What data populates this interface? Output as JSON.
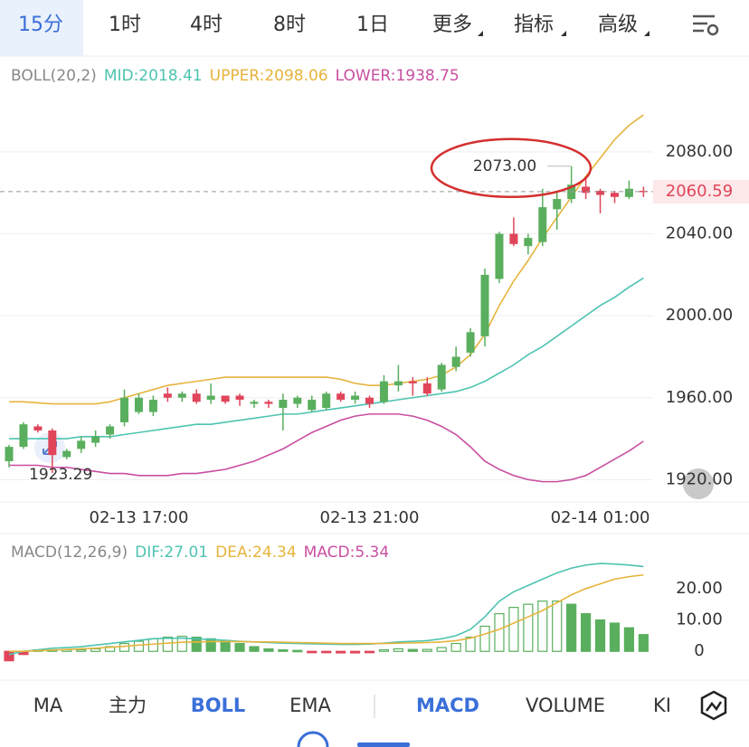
{
  "tabs": [
    "15分",
    "1时",
    "4时",
    "8时",
    "1日",
    "更多",
    "指标",
    "高级"
  ],
  "selected_tab": 0,
  "boll_header": {
    "name": "BOLL(20,2)",
    "mid": "MID:2018.41",
    "upper": "UPPER:2098.06",
    "lower": "LOWER:1938.75"
  },
  "main_chart": {
    "ylim": [
      1910,
      2110
    ],
    "yticks": [
      {
        "value": 2080,
        "label": "2080.00"
      },
      {
        "value": 2040,
        "label": "2040.00"
      },
      {
        "value": 2000,
        "label": "2000.00"
      },
      {
        "value": 1960,
        "label": "1960.00"
      },
      {
        "value": 1920,
        "label": "1920.00"
      }
    ],
    "categories": [
      null,
      null,
      null,
      null,
      null,
      null,
      null,
      null,
      null,
      "02-13 17:00",
      null,
      null,
      null,
      null,
      null,
      null,
      null,
      null,
      null,
      null,
      null,
      null,
      null,
      null,
      null,
      "02-13 21:00",
      null,
      null,
      null,
      null,
      null,
      null,
      null,
      null,
      null,
      null,
      null,
      null,
      null,
      null,
      null,
      "02-14 01:00",
      null,
      null,
      null
    ],
    "open": [
      1929,
      1936,
      1946,
      1944,
      1931,
      1935,
      1938,
      1942,
      1948,
      1953,
      1953,
      1962,
      1960,
      1962,
      1959,
      1961,
      1961,
      1957,
      1958,
      1955,
      1957,
      1954,
      1955,
      1962,
      1959,
      1960,
      1958,
      1966,
      1968,
      1967,
      1964,
      1975,
      1982,
      1990,
      2018,
      2040,
      2034,
      2036,
      2052,
      2057,
      2063,
      2061,
      2060,
      2058,
      2061
    ],
    "high": [
      1937,
      1948,
      1947,
      1945,
      1935,
      1941,
      1944,
      1947,
      1964,
      1962,
      1961,
      1965,
      1963,
      1964,
      1967,
      1961,
      1962,
      1959,
      1959,
      1962,
      1961,
      1961,
      1963,
      1963,
      1963,
      1961,
      1971,
      1976,
      1970,
      1970,
      1977,
      1985,
      1994,
      2023,
      2041,
      2048,
      2040,
      2062,
      2060,
      2073,
      2068,
      2062,
      2061,
      2066,
      2063
    ],
    "low": [
      1926,
      1935,
      1943,
      1923.29,
      1930,
      1933,
      1936,
      1940,
      1946,
      1952,
      1951,
      1958,
      1958,
      1957,
      1957,
      1957,
      1956,
      1955,
      1955,
      1944,
      1955,
      1953,
      1954,
      1958,
      1957,
      1955,
      1957,
      1963,
      1961,
      1961,
      1963,
      1973,
      1980,
      1985,
      2016,
      2034,
      2030,
      2034,
      2042,
      2055,
      2057,
      2050,
      2055,
      2057,
      2058
    ],
    "close": [
      1936,
      1947,
      1944,
      1932,
      1934,
      1939,
      1941,
      1946,
      1960,
      1960,
      1959,
      1960,
      1962,
      1958,
      1961,
      1958,
      1959,
      1958,
      1957,
      1959,
      1960,
      1959,
      1962,
      1959,
      1961,
      1957,
      1968,
      1968,
      1967,
      1962,
      1976,
      1980,
      1992,
      2020,
      2040,
      2035,
      2038,
      2053,
      2057,
      2064,
      2060,
      2059,
      2058,
      2062,
      2060.59
    ],
    "upper": [
      1958,
      1958,
      1957.5,
      1957,
      1957,
      1957,
      1957,
      1958,
      1960,
      1962,
      1964,
      1966,
      1967,
      1968,
      1969,
      1970,
      1970,
      1970,
      1970,
      1970,
      1970,
      1970,
      1970,
      1969,
      1967,
      1966,
      1966,
      1967,
      1968,
      1969,
      1971,
      1975,
      1981,
      1991,
      2005,
      2017,
      2027,
      2038,
      2048,
      2058,
      2068,
      2077,
      2086,
      2093,
      2098.06
    ],
    "mid": [
      1940,
      1940,
      1940,
      1940,
      1940,
      1941,
      1941,
      1941,
      1942,
      1943,
      1944,
      1945,
      1946,
      1947,
      1947,
      1948,
      1949,
      1950,
      1951,
      1952,
      1952,
      1953,
      1954,
      1955,
      1956,
      1957,
      1958,
      1959,
      1960,
      1961,
      1962,
      1963,
      1965,
      1968,
      1972,
      1976,
      1981,
      1985,
      1990,
      1995,
      2000,
      2005,
      2009,
      2014,
      2018.41
    ],
    "lower": [
      1927,
      1927,
      1927,
      1926,
      1926,
      1925,
      1924,
      1923,
      1923,
      1922,
      1922,
      1922,
      1923,
      1923,
      1924,
      1925,
      1927,
      1929,
      1932,
      1935,
      1939,
      1943,
      1946,
      1949,
      1951,
      1952,
      1952,
      1952,
      1951,
      1949,
      1946,
      1942,
      1936,
      1929,
      1925,
      1922,
      1920,
      1919,
      1919,
      1920,
      1922,
      1926,
      1930,
      1934,
      1938.75
    ],
    "last_price": {
      "value": 2060.59,
      "label": "2060.59"
    },
    "max_label": {
      "value": 2073,
      "label": "2073.00"
    },
    "min_label": {
      "value": 1923.29,
      "label": "1923.29"
    }
  },
  "macd_header": {
    "name": "MACD(12,26,9)",
    "dif": "DIF:27.01",
    "dea": "DEA:24.34",
    "macd": "MACD:5.34"
  },
  "macd_chart": {
    "ylim": [
      -8,
      35.5
    ],
    "yticks": [
      {
        "value": 20,
        "label": "20.00"
      },
      {
        "value": 10,
        "label": "10.00"
      },
      0
    ],
    "hist": [
      -3,
      -1,
      0.5,
      0.5,
      0.5,
      0.5,
      0.8,
      1.5,
      2.5,
      3.2,
      4,
      4.5,
      4.8,
      4.5,
      4,
      3.5,
      2.5,
      1.5,
      0.8,
      0.5,
      0.3,
      -0.3,
      -0.4,
      -0.5,
      -0.5,
      -0.3,
      0.5,
      0.8,
      0.6,
      0.6,
      1.2,
      2.5,
      4.5,
      8,
      12,
      14,
      15,
      16,
      16,
      15,
      12,
      10,
      9,
      7.5,
      5.34
    ],
    "dif": [
      -1,
      0,
      0.5,
      1,
      1.2,
      1.5,
      2,
      2.5,
      3,
      3.5,
      4,
      4.2,
      4.2,
      4,
      3.8,
      3.5,
      3.2,
      3,
      2.8,
      2.6,
      2.5,
      2.4,
      2.3,
      2.2,
      2.2,
      2.3,
      2.6,
      3,
      3.2,
      3.4,
      4,
      5,
      7,
      11,
      16,
      19,
      21,
      23,
      25,
      26.5,
      27.5,
      28,
      27.8,
      27.5,
      27.01
    ],
    "dea": [
      0,
      0,
      0.2,
      0.4,
      0.6,
      0.8,
      1,
      1.3,
      1.6,
      2,
      2.3,
      2.6,
      2.9,
      3,
      3.1,
      3.1,
      3.1,
      3,
      3,
      2.9,
      2.8,
      2.7,
      2.6,
      2.5,
      2.5,
      2.5,
      2.5,
      2.6,
      2.7,
      2.8,
      3,
      3.4,
      4.2,
      5.5,
      7,
      9,
      11,
      13,
      15.5,
      18,
      20,
      21.5,
      23,
      23.8,
      24.34
    ]
  },
  "bottom_tabs": [
    "MA",
    "主力",
    "BOLL",
    "EMA",
    "MACD",
    "VOLUME",
    "KI"
  ],
  "active_bottom_tabs": [
    2,
    4
  ]
}
